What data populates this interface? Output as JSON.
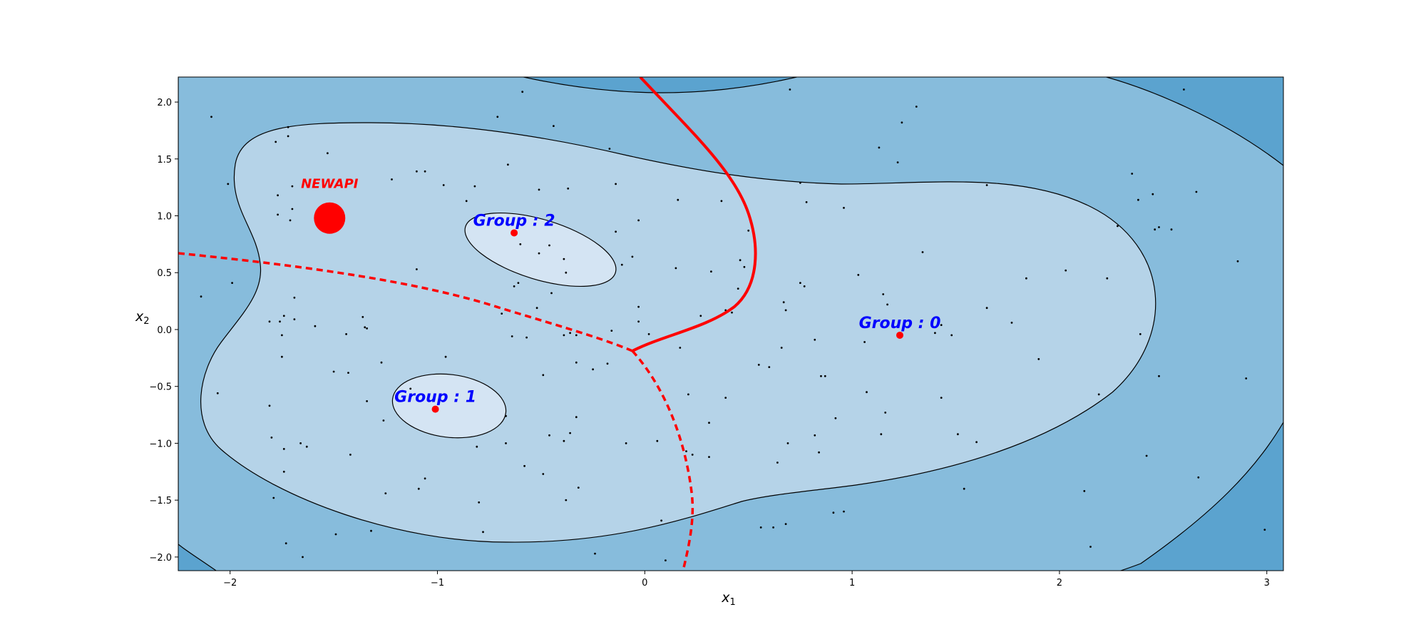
{
  "chart_data": {
    "type": "scatter",
    "title": "",
    "xlabel": "x",
    "xlabel_sub": "1",
    "ylabel": "x",
    "ylabel_sub": "2",
    "xlim": [
      -2.25,
      3.08
    ],
    "ylim": [
      -2.12,
      2.22
    ],
    "xticks": [
      -2,
      -1,
      0,
      1,
      2,
      3
    ],
    "yticks": [
      -2.0,
      -1.5,
      -1.0,
      -0.5,
      0.0,
      0.5,
      1.0,
      1.5,
      2.0
    ],
    "xtick_labels": [
      "−2",
      "−1",
      "0",
      "1",
      "2",
      "3"
    ],
    "ytick_labels": [
      "−2.0",
      "−1.5",
      "−1.0",
      "−0.5",
      "0.0",
      "0.5",
      "1.0",
      "1.5",
      "2.0"
    ],
    "grid": false,
    "density_fill_colors": [
      "#5ba3cf",
      "#87bcdc",
      "#b5d3e8",
      "#d4e4f3"
    ],
    "contour_color": "#000000",
    "boundary_color": "#ff0000",
    "centroid_color": "#ff0000",
    "label_color": "#0000ff",
    "centroids": [
      {
        "label": "Group : 0",
        "x": 1.23,
        "y": -0.05
      },
      {
        "label": "Group : 1",
        "x": -1.01,
        "y": -0.7
      },
      {
        "label": "Group : 2",
        "x": -0.63,
        "y": 0.85
      }
    ],
    "new_point": {
      "label": "NEWAPI",
      "x": -1.52,
      "y": 0.98
    },
    "samples": [
      [
        -2.09,
        1.87
      ],
      [
        -2.01,
        1.28
      ],
      [
        -1.72,
        1.78
      ],
      [
        -1.72,
        1.7
      ],
      [
        -1.78,
        1.65
      ],
      [
        -1.53,
        1.55
      ],
      [
        -1.7,
        1.26
      ],
      [
        -1.77,
        1.18
      ],
      [
        -1.77,
        1.01
      ],
      [
        -1.7,
        1.06
      ],
      [
        -1.71,
        0.96
      ],
      [
        -1.52,
        0.97
      ],
      [
        -1.54,
        0.89
      ],
      [
        -2.14,
        0.29
      ],
      [
        -1.99,
        0.41
      ],
      [
        -1.69,
        0.28
      ],
      [
        -1.74,
        0.12
      ],
      [
        -1.76,
        0.07
      ],
      [
        -1.81,
        0.07
      ],
      [
        -1.69,
        0.09
      ],
      [
        -1.59,
        0.03
      ],
      [
        -1.44,
        -0.04
      ],
      [
        -1.75,
        -0.05
      ],
      [
        -1.75,
        -0.24
      ],
      [
        -1.36,
        0.11
      ],
      [
        -1.35,
        0.02
      ],
      [
        -1.34,
        0.01
      ],
      [
        -1.27,
        -0.29
      ],
      [
        -1.5,
        -0.37
      ],
      [
        -1.43,
        -0.38
      ],
      [
        -1.34,
        -0.63
      ],
      [
        -2.06,
        -0.56
      ],
      [
        -1.81,
        -0.67
      ],
      [
        -1.26,
        -0.8
      ],
      [
        -1.8,
        -0.95
      ],
      [
        -1.74,
        -1.05
      ],
      [
        -1.66,
        -1.0
      ],
      [
        -1.63,
        -1.03
      ],
      [
        -1.74,
        -1.25
      ],
      [
        -1.42,
        -1.1
      ],
      [
        -1.79,
        -1.48
      ],
      [
        -1.73,
        -1.88
      ],
      [
        -1.65,
        -2.0
      ],
      [
        -1.49,
        -1.8
      ],
      [
        -1.32,
        -1.77
      ],
      [
        -1.25,
        -1.44
      ],
      [
        -1.09,
        -1.4
      ],
      [
        -1.06,
        -1.31
      ],
      [
        -1.13,
        -0.52
      ],
      [
        -0.96,
        -0.24
      ],
      [
        -0.67,
        -0.76
      ],
      [
        -0.67,
        -1.0
      ],
      [
        -0.81,
        -1.03
      ],
      [
        -0.8,
        -1.52
      ],
      [
        -0.78,
        -1.78
      ],
      [
        -0.49,
        -0.4
      ],
      [
        -0.46,
        -0.93
      ],
      [
        -0.39,
        -0.98
      ],
      [
        -0.36,
        -0.91
      ],
      [
        -0.33,
        -0.77
      ],
      [
        -0.49,
        -1.27
      ],
      [
        -0.38,
        -1.5
      ],
      [
        -0.32,
        -1.39
      ],
      [
        -0.24,
        -1.97
      ],
      [
        -0.33,
        -0.29
      ],
      [
        -0.25,
        -0.35
      ],
      [
        -0.18,
        -0.3
      ],
      [
        -0.09,
        -1.0
      ],
      [
        0.06,
        -0.98
      ],
      [
        0.21,
        -0.57
      ],
      [
        0.2,
        -1.07
      ],
      [
        0.23,
        -1.1
      ],
      [
        0.31,
        -1.12
      ],
      [
        0.31,
        -0.82
      ],
      [
        0.39,
        -0.6
      ],
      [
        0.02,
        -0.04
      ],
      [
        -0.03,
        0.2
      ],
      [
        -0.03,
        0.07
      ],
      [
        -0.16,
        -0.01
      ],
      [
        0.17,
        -0.16
      ],
      [
        0.27,
        0.12
      ],
      [
        -0.11,
        0.57
      ],
      [
        -0.06,
        0.64
      ],
      [
        -0.14,
        0.86
      ],
      [
        -0.03,
        0.96
      ],
      [
        -0.14,
        1.28
      ],
      [
        -0.17,
        1.59
      ],
      [
        0.15,
        0.54
      ],
      [
        0.16,
        1.14
      ],
      [
        0.32,
        0.51
      ],
      [
        0.39,
        0.17
      ],
      [
        0.42,
        0.15
      ],
      [
        0.45,
        0.36
      ],
      [
        0.46,
        0.61
      ],
      [
        0.48,
        0.55
      ],
      [
        0.5,
        0.87
      ],
      [
        0.37,
        1.13
      ],
      [
        0.08,
        -1.68
      ],
      [
        0.1,
        -2.03
      ],
      [
        0.67,
        0.24
      ],
      [
        0.68,
        0.17
      ],
      [
        0.66,
        -0.16
      ],
      [
        0.55,
        -0.31
      ],
      [
        0.6,
        -0.33
      ],
      [
        0.69,
        -1.0
      ],
      [
        0.64,
        -1.17
      ],
      [
        0.56,
        -1.74
      ],
      [
        0.62,
        -1.74
      ],
      [
        0.68,
        -1.71
      ],
      [
        0.75,
        0.41
      ],
      [
        0.77,
        0.38
      ],
      [
        0.75,
        1.29
      ],
      [
        0.78,
        1.12
      ],
      [
        0.82,
        -0.09
      ],
      [
        0.85,
        -0.41
      ],
      [
        0.87,
        -0.41
      ],
      [
        0.82,
        -0.93
      ],
      [
        0.84,
        -1.08
      ],
      [
        0.91,
        -1.61
      ],
      [
        0.96,
        -1.6
      ],
      [
        0.92,
        -0.78
      ],
      [
        0.96,
        1.07
      ],
      [
        1.03,
        0.48
      ],
      [
        1.06,
        -0.11
      ],
      [
        1.07,
        -0.55
      ],
      [
        1.14,
        -0.92
      ],
      [
        1.16,
        -0.73
      ],
      [
        1.17,
        0.22
      ],
      [
        1.15,
        0.31
      ],
      [
        1.13,
        1.6
      ],
      [
        1.22,
        1.47
      ],
      [
        1.24,
        1.82
      ],
      [
        1.31,
        1.96
      ],
      [
        1.34,
        0.68
      ],
      [
        1.4,
        -0.03
      ],
      [
        1.43,
        0.04
      ],
      [
        1.48,
        -0.05
      ],
      [
        1.43,
        -0.6
      ],
      [
        1.51,
        -0.92
      ],
      [
        1.54,
        -1.4
      ],
      [
        1.6,
        -0.99
      ],
      [
        1.65,
        0.19
      ],
      [
        1.65,
        1.27
      ],
      [
        1.77,
        0.06
      ],
      [
        1.84,
        0.45
      ],
      [
        1.9,
        -0.26
      ],
      [
        2.03,
        0.52
      ],
      [
        2.12,
        -1.42
      ],
      [
        2.15,
        -1.91
      ],
      [
        2.19,
        -0.57
      ],
      [
        2.23,
        0.45
      ],
      [
        2.28,
        0.91
      ],
      [
        2.35,
        1.37
      ],
      [
        2.38,
        1.14
      ],
      [
        2.39,
        -0.04
      ],
      [
        2.42,
        -1.11
      ],
      [
        2.45,
        1.19
      ],
      [
        2.46,
        0.88
      ],
      [
        2.48,
        -0.41
      ],
      [
        2.48,
        0.9
      ],
      [
        2.54,
        0.88
      ],
      [
        2.6,
        2.11
      ],
      [
        2.66,
        1.21
      ],
      [
        2.67,
        -1.3
      ],
      [
        2.86,
        0.6
      ],
      [
        2.9,
        -0.43
      ],
      [
        2.99,
        -1.76
      ],
      [
        -0.59,
        2.09
      ],
      [
        -0.71,
        1.87
      ],
      [
        -0.44,
        1.79
      ],
      [
        -0.66,
        1.45
      ],
      [
        -0.51,
        1.23
      ],
      [
        -0.37,
        1.24
      ],
      [
        -0.82,
        1.26
      ],
      [
        -0.86,
        1.13
      ],
      [
        -1.06,
        1.39
      ],
      [
        -1.1,
        1.39
      ],
      [
        -1.22,
        1.32
      ],
      [
        -0.97,
        1.27
      ],
      [
        -1.1,
        0.53
      ],
      [
        -0.6,
        0.75
      ],
      [
        -0.46,
        0.74
      ],
      [
        -0.39,
        0.62
      ],
      [
        -0.38,
        0.5
      ],
      [
        -0.51,
        0.67
      ],
      [
        -0.45,
        0.32
      ],
      [
        -0.52,
        0.19
      ],
      [
        -0.61,
        0.41
      ],
      [
        -0.63,
        0.38
      ],
      [
        -0.69,
        0.14
      ],
      [
        -0.64,
        -0.06
      ],
      [
        -0.39,
        -0.05
      ],
      [
        -0.36,
        -0.03
      ],
      [
        -0.33,
        -0.05
      ],
      [
        -0.57,
        -0.07
      ],
      [
        -0.58,
        -1.2
      ],
      [
        0.7,
        2.11
      ]
    ]
  }
}
